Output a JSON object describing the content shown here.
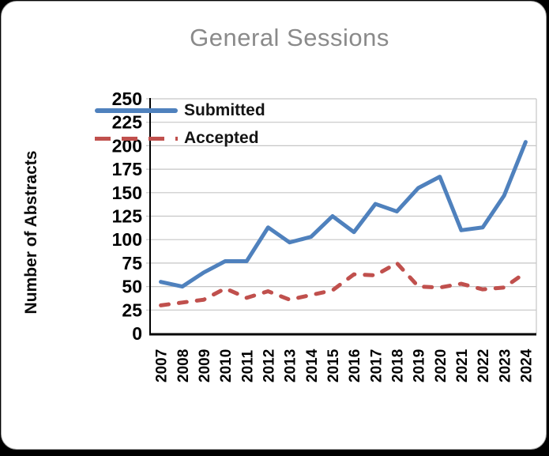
{
  "window": {
    "background": "#000000",
    "card_background": "#ffffff",
    "card_border": "#a8a8a8"
  },
  "chart_data": {
    "type": "line",
    "title": "General Sessions",
    "title_color": "#8a8a8a",
    "xlabel": "",
    "ylabel": "Number of Abstracts",
    "x": [
      "2007",
      "2008",
      "2009",
      "2010",
      "2011",
      "2012",
      "2013",
      "2014",
      "2015",
      "2016",
      "2017",
      "2018",
      "2019",
      "2020",
      "2021",
      "2022",
      "2023",
      "2024"
    ],
    "series": [
      {
        "name": "Submitted",
        "color": "#4F81BD",
        "style": "solid",
        "values": [
          55,
          50,
          65,
          77,
          77,
          113,
          97,
          103,
          125,
          108,
          138,
          130,
          155,
          167,
          110,
          113,
          147,
          204
        ]
      },
      {
        "name": "Accepted",
        "color": "#C0504D",
        "style": "dashed",
        "values": [
          30,
          33,
          36,
          48,
          38,
          45,
          36,
          41,
          46,
          63,
          62,
          75,
          50,
          49,
          53,
          47,
          49,
          65
        ]
      }
    ],
    "ylim": [
      0,
      250
    ],
    "ytick_step": 25,
    "grid": true,
    "gridline_color": "#c6c6c6",
    "axis_color": "#000000",
    "tick_label_color": "#000000",
    "legend_position": "top-left-inside"
  }
}
